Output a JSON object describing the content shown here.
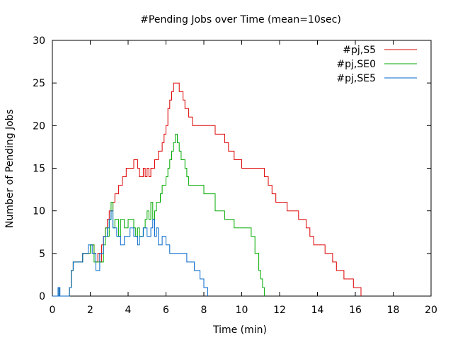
{
  "chart_data": {
    "type": "line",
    "line_style": "step",
    "title": "#Pending Jobs over Time (mean=10sec)",
    "xlabel": "Time (min)",
    "ylabel": "Number of Pending Jobs",
    "xlim": [
      0,
      20
    ],
    "ylim": [
      0,
      30
    ],
    "xticks": [
      0,
      2,
      4,
      6,
      8,
      10,
      12,
      14,
      16,
      18,
      20
    ],
    "yticks": [
      0,
      5,
      10,
      15,
      20,
      25,
      30
    ],
    "grid": false,
    "legend_position": "top-right",
    "series": [
      {
        "name": "#pj,S5",
        "color": "#dd0000",
        "points": [
          [
            0,
            0
          ],
          [
            0.3,
            1
          ],
          [
            0.35,
            0
          ],
          [
            0.9,
            1
          ],
          [
            1.0,
            3
          ],
          [
            1.1,
            4
          ],
          [
            1.6,
            5
          ],
          [
            1.9,
            5
          ],
          [
            2.0,
            6
          ],
          [
            2.2,
            5
          ],
          [
            2.3,
            4
          ],
          [
            2.4,
            5
          ],
          [
            2.5,
            4
          ],
          [
            2.6,
            6
          ],
          [
            2.7,
            7
          ],
          [
            2.8,
            8
          ],
          [
            2.9,
            9
          ],
          [
            3.0,
            10
          ],
          [
            3.2,
            11
          ],
          [
            3.3,
            12
          ],
          [
            3.5,
            13
          ],
          [
            3.7,
            14
          ],
          [
            3.9,
            15
          ],
          [
            4.1,
            15
          ],
          [
            4.3,
            16
          ],
          [
            4.5,
            15
          ],
          [
            4.6,
            14
          ],
          [
            4.8,
            15
          ],
          [
            4.9,
            14
          ],
          [
            5.0,
            15
          ],
          [
            5.1,
            14
          ],
          [
            5.2,
            15
          ],
          [
            5.4,
            16
          ],
          [
            5.6,
            17
          ],
          [
            5.8,
            18
          ],
          [
            5.9,
            19
          ],
          [
            6.0,
            20
          ],
          [
            6.1,
            22
          ],
          [
            6.2,
            23
          ],
          [
            6.3,
            24
          ],
          [
            6.4,
            25
          ],
          [
            6.7,
            24
          ],
          [
            6.9,
            23
          ],
          [
            7.0,
            22
          ],
          [
            7.2,
            21
          ],
          [
            7.4,
            20
          ],
          [
            8.6,
            19
          ],
          [
            8.9,
            19
          ],
          [
            9.1,
            18
          ],
          [
            9.3,
            17
          ],
          [
            9.6,
            16
          ],
          [
            9.8,
            16
          ],
          [
            10.0,
            15
          ],
          [
            11.0,
            15
          ],
          [
            11.2,
            14
          ],
          [
            11.4,
            13
          ],
          [
            11.6,
            12
          ],
          [
            11.8,
            11
          ],
          [
            12.2,
            11
          ],
          [
            12.4,
            10
          ],
          [
            13.0,
            9
          ],
          [
            13.4,
            8
          ],
          [
            13.6,
            7
          ],
          [
            13.8,
            6
          ],
          [
            14.2,
            6
          ],
          [
            14.4,
            5
          ],
          [
            14.8,
            4
          ],
          [
            15.0,
            3
          ],
          [
            15.4,
            2
          ],
          [
            15.7,
            2
          ],
          [
            15.9,
            1
          ],
          [
            16.2,
            1
          ],
          [
            16.3,
            0
          ]
        ]
      },
      {
        "name": "#pj,SE0",
        "color": "#00aa00",
        "points": [
          [
            0,
            0
          ],
          [
            0.3,
            1
          ],
          [
            0.35,
            0
          ],
          [
            0.9,
            1
          ],
          [
            1.0,
            3
          ],
          [
            1.1,
            4
          ],
          [
            1.6,
            5
          ],
          [
            2.0,
            6
          ],
          [
            2.2,
            4
          ],
          [
            2.6,
            4
          ],
          [
            2.7,
            6
          ],
          [
            2.8,
            8
          ],
          [
            2.9,
            7
          ],
          [
            3.0,
            9
          ],
          [
            3.1,
            11
          ],
          [
            3.2,
            8
          ],
          [
            3.3,
            9
          ],
          [
            3.5,
            7
          ],
          [
            3.6,
            9
          ],
          [
            3.8,
            8
          ],
          [
            4.0,
            9
          ],
          [
            4.3,
            8
          ],
          [
            4.4,
            7
          ],
          [
            4.5,
            8
          ],
          [
            4.6,
            7
          ],
          [
            4.8,
            8
          ],
          [
            4.9,
            9
          ],
          [
            5.0,
            10
          ],
          [
            5.1,
            9
          ],
          [
            5.2,
            11
          ],
          [
            5.3,
            9
          ],
          [
            5.4,
            10
          ],
          [
            5.5,
            11
          ],
          [
            5.7,
            12
          ],
          [
            5.8,
            13
          ],
          [
            6.0,
            14
          ],
          [
            6.1,
            15
          ],
          [
            6.2,
            16
          ],
          [
            6.3,
            17
          ],
          [
            6.4,
            18
          ],
          [
            6.5,
            19
          ],
          [
            6.6,
            18
          ],
          [
            6.7,
            17
          ],
          [
            6.8,
            16
          ],
          [
            7.0,
            15
          ],
          [
            7.1,
            14
          ],
          [
            7.2,
            13
          ],
          [
            7.9,
            13
          ],
          [
            8.0,
            12
          ],
          [
            8.3,
            12
          ],
          [
            8.6,
            10
          ],
          [
            9.1,
            9
          ],
          [
            9.6,
            8
          ],
          [
            10.3,
            8
          ],
          [
            10.5,
            7
          ],
          [
            10.7,
            5
          ],
          [
            10.9,
            3
          ],
          [
            11.0,
            2
          ],
          [
            11.1,
            1
          ],
          [
            11.2,
            0
          ]
        ]
      },
      {
        "name": "#pj,SE5",
        "color": "#0066cc",
        "points": [
          [
            0,
            0
          ],
          [
            0.3,
            1
          ],
          [
            0.35,
            0
          ],
          [
            0.3,
            1
          ],
          [
            0.4,
            0
          ],
          [
            0.9,
            1
          ],
          [
            1.0,
            3
          ],
          [
            1.1,
            4
          ],
          [
            1.6,
            5
          ],
          [
            1.9,
            6
          ],
          [
            2.1,
            5
          ],
          [
            2.3,
            3
          ],
          [
            2.5,
            5
          ],
          [
            2.7,
            7
          ],
          [
            2.9,
            8
          ],
          [
            3.0,
            9
          ],
          [
            3.1,
            10
          ],
          [
            3.2,
            8
          ],
          [
            3.4,
            7
          ],
          [
            3.6,
            6
          ],
          [
            3.8,
            7
          ],
          [
            4.1,
            8
          ],
          [
            4.3,
            7
          ],
          [
            4.5,
            6
          ],
          [
            4.6,
            7
          ],
          [
            4.8,
            8
          ],
          [
            5.0,
            7
          ],
          [
            5.2,
            8
          ],
          [
            5.3,
            9
          ],
          [
            5.4,
            7
          ],
          [
            5.5,
            8
          ],
          [
            5.6,
            6
          ],
          [
            5.8,
            7
          ],
          [
            6.0,
            6
          ],
          [
            6.2,
            5
          ],
          [
            6.8,
            5
          ],
          [
            7.1,
            4
          ],
          [
            7.5,
            3
          ],
          [
            7.8,
            2
          ],
          [
            8.0,
            1
          ],
          [
            8.2,
            0
          ]
        ]
      }
    ]
  }
}
